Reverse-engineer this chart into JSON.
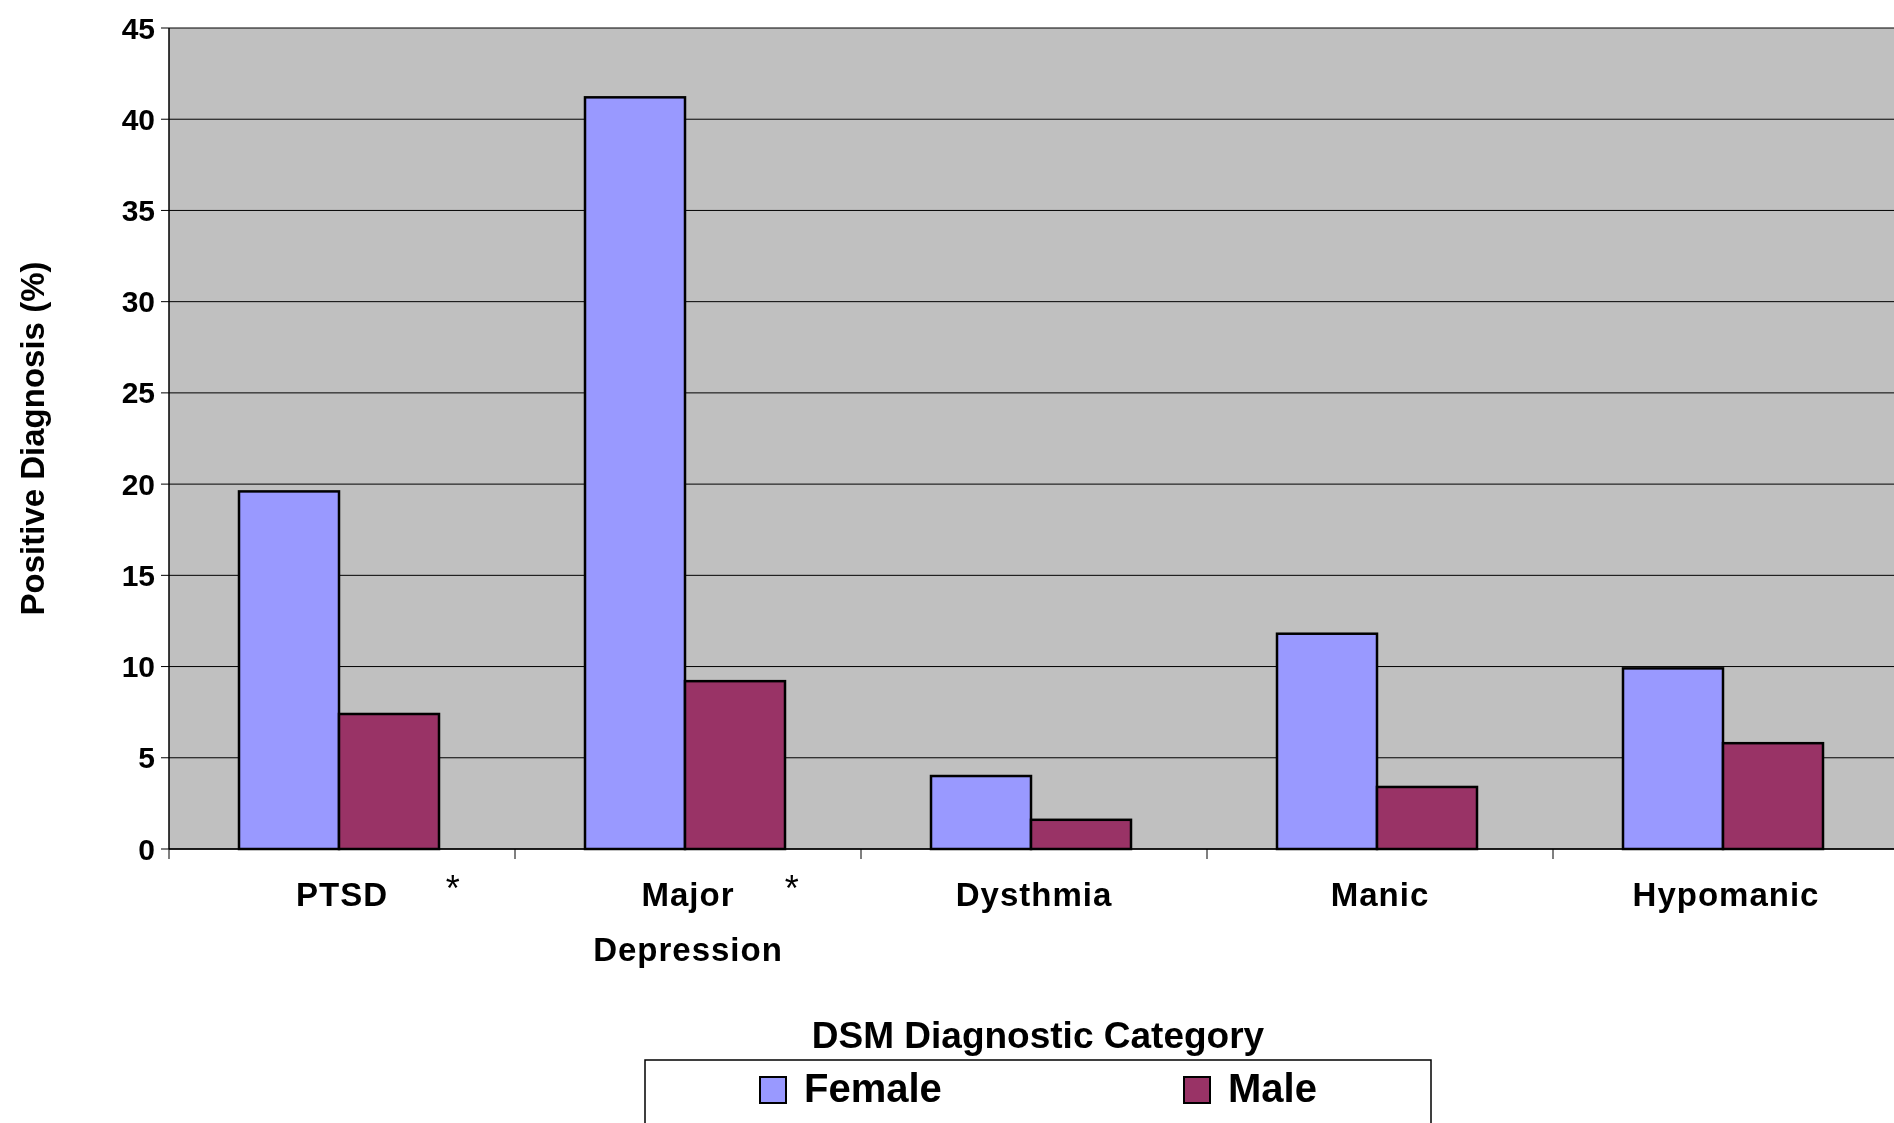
{
  "chart_data": {
    "type": "bar",
    "xlabel": "DSM Diagnostic Category",
    "ylabel": "Positive Diagnosis (%)",
    "categories": [
      "PTSD",
      "Major Depression",
      "Dysthmia",
      "Manic",
      "Hypomanic"
    ],
    "series": [
      {
        "name": "Female",
        "color": "#9999ff",
        "values": [
          19.6,
          41.2,
          4.0,
          11.8,
          9.9
        ]
      },
      {
        "name": "Male",
        "color": "#993366",
        "values": [
          7.4,
          9.2,
          1.6,
          3.4,
          5.8
        ]
      }
    ],
    "ylim": [
      0,
      45
    ],
    "yticks": [
      0,
      5,
      10,
      15,
      20,
      25,
      30,
      35,
      40,
      45
    ],
    "grid": "y",
    "legend": "bottom",
    "annotations": [
      "*",
      "*"
    ]
  }
}
